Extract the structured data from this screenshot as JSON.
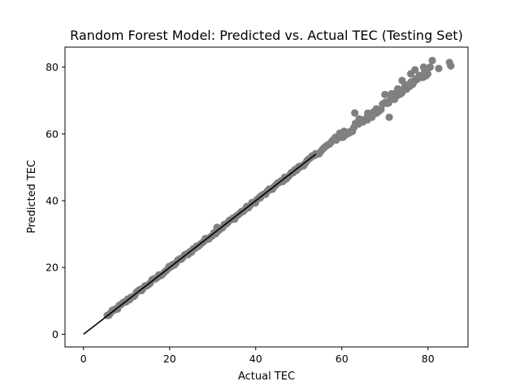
{
  "chart_data": {
    "type": "scatter",
    "title": "Random Forest Model: Predicted vs. Actual TEC (Testing Set)",
    "xlabel": "Actual TEC",
    "ylabel": "Predicted TEC",
    "xlim": [
      -4.3,
      89.3
    ],
    "ylim": [
      -3.8,
      86
    ],
    "xticks": [
      0,
      20,
      40,
      60,
      80
    ],
    "yticks": [
      0,
      20,
      40,
      60,
      80
    ],
    "grid": false,
    "colors": {
      "points": "#808080",
      "line": "#000000"
    },
    "series": [
      {
        "kind": "scatter",
        "segments": [
          {
            "from": 5.5,
            "to": 60,
            "ratio": 0.997,
            "step": 0.4,
            "jitter": 0.5
          },
          {
            "from": 60,
            "to": 80,
            "ratio": 0.985,
            "step": 0.35,
            "jitter": 1.0
          }
        ],
        "points": [
          [
            28.5,
            28.4
          ],
          [
            31,
            32
          ],
          [
            41,
            41.2
          ],
          [
            50,
            50.2
          ],
          [
            61,
            60.5
          ],
          [
            60.5,
            60.8
          ],
          [
            59.5,
            60.2
          ],
          [
            58.5,
            59.0
          ],
          [
            63,
            66.3
          ],
          [
            71,
            65
          ],
          [
            64,
            64.5
          ],
          [
            66,
            66.2
          ],
          [
            68,
            67.5
          ],
          [
            70,
            71.8
          ],
          [
            71.5,
            72
          ],
          [
            73,
            73.5
          ],
          [
            74,
            76
          ],
          [
            76,
            78
          ],
          [
            77,
            79.2
          ],
          [
            78,
            77.5
          ],
          [
            79,
            80
          ],
          [
            80.5,
            80
          ],
          [
            81,
            82
          ],
          [
            82.5,
            79.6
          ],
          [
            85,
            81.4
          ],
          [
            85.3,
            80.4
          ]
        ]
      },
      {
        "kind": "line",
        "points": [
          [
            0,
            0
          ],
          [
            54,
            54
          ]
        ]
      }
    ]
  }
}
